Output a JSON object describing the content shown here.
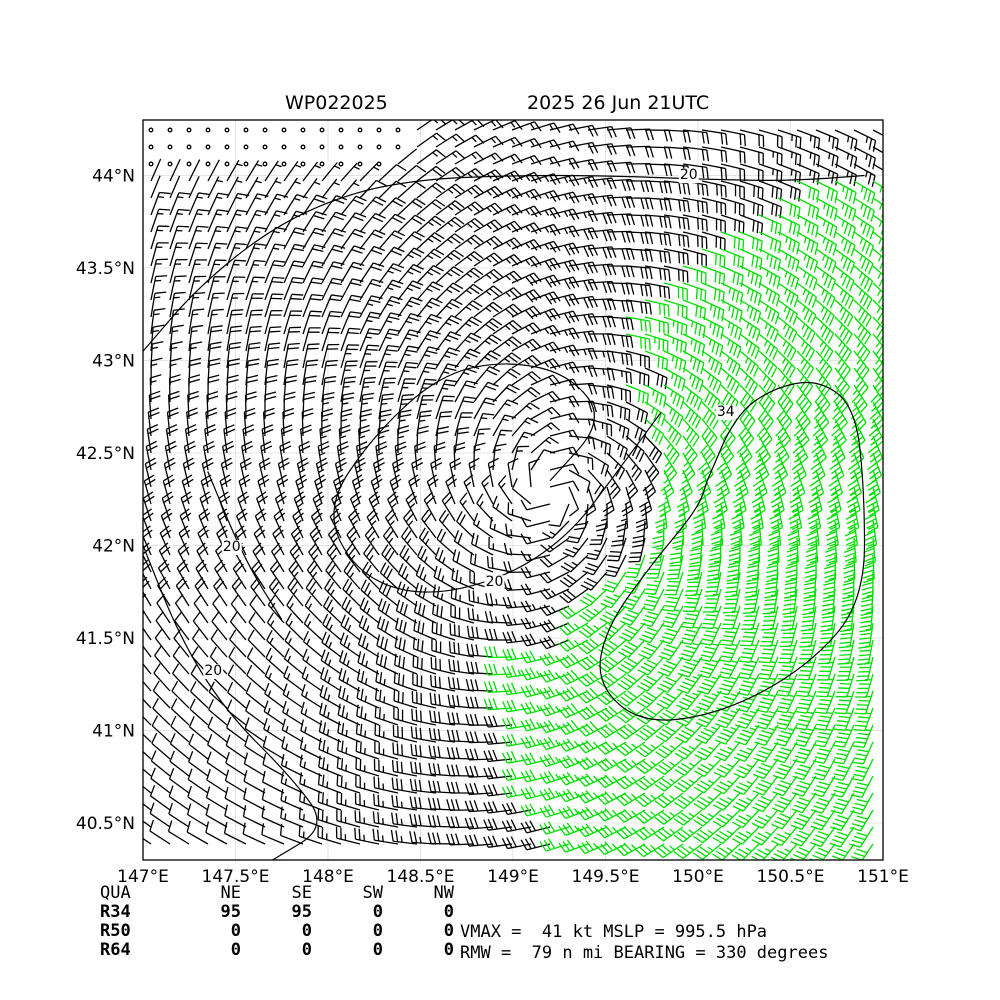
{
  "header": {
    "storm_id": "WP022025",
    "valid_time": "2025 26 Jun 21UTC"
  },
  "colors": {
    "barb_weak": "#000000",
    "barb_tropical_storm": "#00e000",
    "barb_50kt": "#e8c020",
    "contour": "#000000",
    "grid": "#dddddd"
  },
  "chart_data": {
    "type": "wind-barb-map",
    "x_ticks": [
      "147°E",
      "147.5°E",
      "148°E",
      "148.5°E",
      "149°E",
      "149.5°E",
      "150°E",
      "150.5°E",
      "151°E"
    ],
    "x_tick_values": [
      147,
      147.5,
      148,
      148.5,
      149,
      149.5,
      150,
      150.5,
      151
    ],
    "y_ticks": [
      "40.5°N",
      "41°N",
      "41.5°N",
      "42°N",
      "42.5°N",
      "43°N",
      "43.5°N",
      "44°N"
    ],
    "y_tick_values": [
      40.5,
      41,
      41.5,
      42,
      42.5,
      43,
      43.5,
      44
    ],
    "xlim": [
      147,
      151
    ],
    "ylim": [
      40.3,
      44.3
    ],
    "grid": true,
    "storm_center": {
      "lon": 149.2,
      "lat": 42.3
    },
    "contour_labels": [
      {
        "text": "20",
        "lon": 149.95,
        "lat": 43.98
      },
      {
        "text": "20",
        "lon": 147.48,
        "lat": 41.97
      },
      {
        "text": "20",
        "lon": 147.38,
        "lat": 41.3
      },
      {
        "text": "20",
        "lon": 148.9,
        "lat": 41.78
      },
      {
        "text": "34",
        "lon": 150.15,
        "lat": 42.7
      }
    ],
    "contours": [
      {
        "level": 20,
        "points": [
          [
            147.0,
            43.05
          ],
          [
            147.3,
            43.4
          ],
          [
            147.7,
            43.72
          ],
          [
            148.1,
            43.9
          ],
          [
            148.5,
            43.98
          ],
          [
            149.0,
            44.0
          ],
          [
            149.5,
            44.0
          ],
          [
            150.0,
            43.98
          ],
          [
            150.5,
            43.97
          ],
          [
            150.9,
            44.0
          ]
        ]
      },
      {
        "level": 20,
        "points": [
          [
            149.2,
            42.35
          ],
          [
            149.5,
            42.68
          ],
          [
            149.3,
            42.93
          ],
          [
            148.95,
            43.0
          ],
          [
            148.6,
            42.92
          ],
          [
            148.25,
            42.6
          ],
          [
            147.98,
            42.2
          ],
          [
            148.15,
            41.85
          ],
          [
            148.5,
            41.72
          ],
          [
            148.95,
            41.82
          ],
          [
            149.3,
            42.05
          ],
          [
            149.55,
            42.38
          ],
          [
            149.8,
            42.72
          ]
        ]
      },
      {
        "level": 20,
        "points": [
          [
            147.35,
            42.4
          ],
          [
            147.55,
            41.92
          ],
          [
            147.75,
            41.6
          ]
        ]
      },
      {
        "level": 20,
        "points": [
          [
            147.0,
            42.0
          ],
          [
            147.2,
            41.5
          ],
          [
            147.45,
            41.1
          ],
          [
            147.8,
            40.75
          ],
          [
            148.0,
            40.48
          ],
          [
            147.7,
            40.3
          ]
        ]
      },
      {
        "level": 34,
        "points": [
          [
            150.05,
            42.35
          ],
          [
            150.2,
            42.7
          ],
          [
            150.4,
            42.85
          ],
          [
            150.65,
            42.9
          ],
          [
            150.85,
            42.75
          ],
          [
            150.9,
            42.3
          ],
          [
            150.9,
            41.7
          ],
          [
            150.6,
            41.35
          ],
          [
            150.15,
            41.1
          ],
          [
            149.7,
            41.03
          ],
          [
            149.45,
            41.25
          ],
          [
            149.5,
            41.55
          ],
          [
            149.75,
            41.9
          ],
          [
            150.0,
            42.2
          ],
          [
            150.05,
            42.35
          ]
        ]
      }
    ]
  },
  "quadrant_table": {
    "headers": [
      "QUA",
      "NE",
      "SE",
      "SW",
      "NW"
    ],
    "rows": [
      {
        "label": "R34",
        "values": [
          "95",
          "95",
          "0",
          "0"
        ]
      },
      {
        "label": "R50",
        "values": [
          "0",
          "0",
          "0",
          "0"
        ]
      },
      {
        "label": "R64",
        "values": [
          "0",
          "0",
          "0",
          "0"
        ]
      }
    ]
  },
  "stats": {
    "line1": "VMAX =  41 kt MSLP = 995.5 hPa",
    "line2": "RMW =  79 n mi BEARING = 330 degrees"
  }
}
